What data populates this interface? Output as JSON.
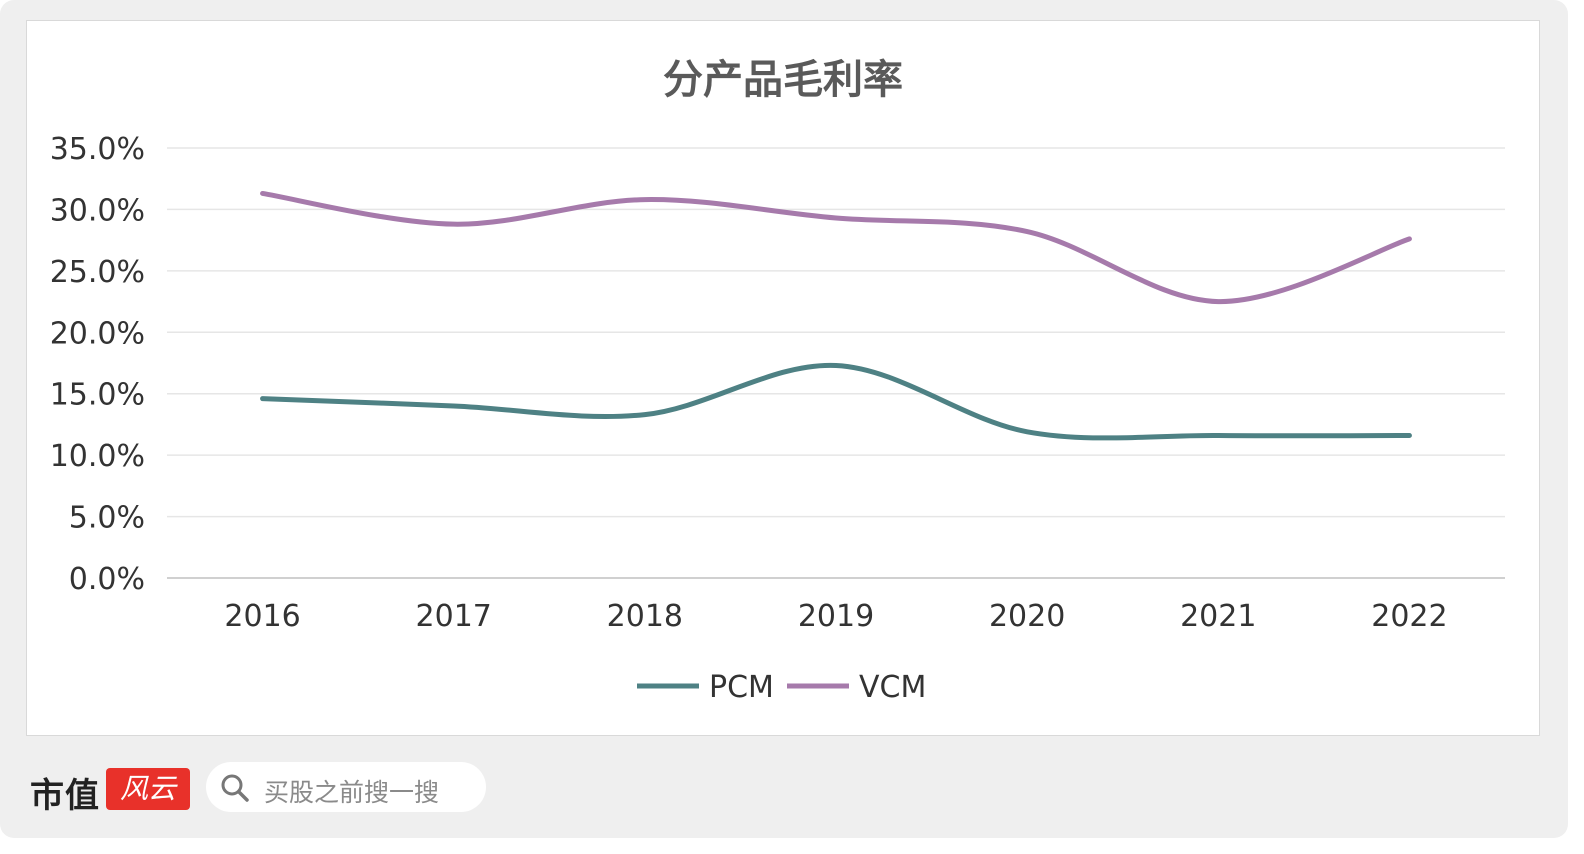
{
  "chart_data": {
    "type": "line",
    "title": "分产品毛利率",
    "categories": [
      "2016",
      "2017",
      "2018",
      "2019",
      "2020",
      "2021",
      "2022"
    ],
    "series": [
      {
        "name": "PCM",
        "color": "#4e8184",
        "values": [
          14.6,
          14.0,
          13.3,
          17.3,
          11.9,
          11.6,
          11.6
        ]
      },
      {
        "name": "VCM",
        "color": "#a67aab",
        "values": [
          31.3,
          28.8,
          30.8,
          29.3,
          28.2,
          22.5,
          27.6
        ]
      }
    ],
    "y_ticks": [
      "0.0%",
      "5.0%",
      "10.0%",
      "15.0%",
      "20.0%",
      "25.0%",
      "30.0%",
      "35.0%"
    ],
    "ylim": [
      0,
      35
    ],
    "grid": true,
    "legend": "bottom-center",
    "xlabel": "",
    "ylabel": ""
  },
  "watermark": "市值风云",
  "footer": {
    "brand": "市值",
    "badge": "风云",
    "search_placeholder": "买股之前搜一搜"
  }
}
